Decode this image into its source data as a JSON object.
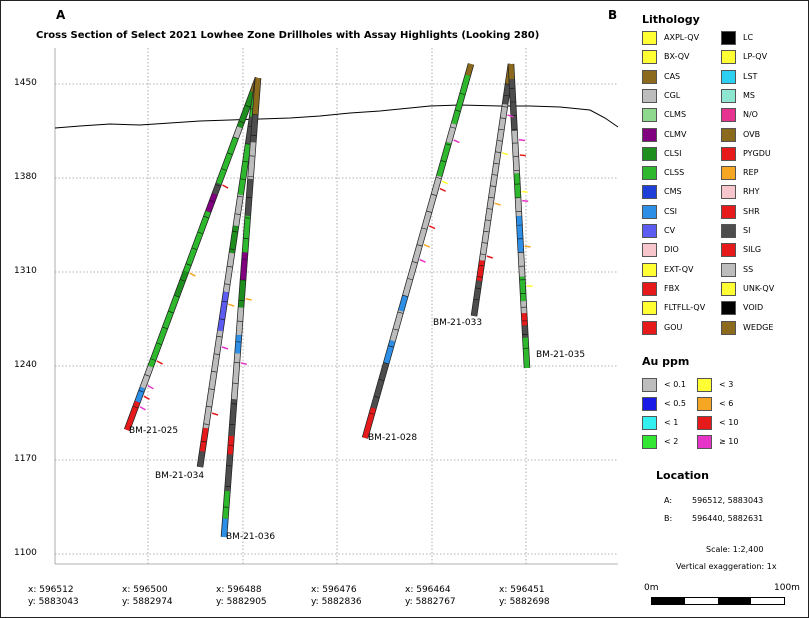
{
  "title": "Cross Section of Select 2021 Lowhee Zone Drillholes with Assay Highlights (Looking 280)",
  "section_ends": {
    "start": "A",
    "end": "B"
  },
  "elevation_labels": [
    "1450",
    "1380",
    "1310",
    "1240",
    "1170",
    "1100"
  ],
  "elevations": [
    1450,
    1380,
    1310,
    1240,
    1170,
    1100
  ],
  "x_ticks": [
    {
      "x": "x: 596512",
      "y": "y: 5883043"
    },
    {
      "x": "x: 596500",
      "y": "y: 5882974"
    },
    {
      "x": "x: 596488",
      "y": "y: 5882905"
    },
    {
      "x": "x: 596476",
      "y": "y: 5882836"
    },
    {
      "x": "x: 596464",
      "y": "y: 5882767"
    },
    {
      "x": "x: 596451",
      "y": "y: 5882698"
    }
  ],
  "drillholes": [
    {
      "id": "BM-21-025",
      "collar_elev": 1455,
      "end_elev": 1192
    },
    {
      "id": "BM-21-034",
      "collar_elev": 1455,
      "end_elev": 1167
    },
    {
      "id": "BM-21-036",
      "collar_elev": 1455,
      "end_elev": 1113
    },
    {
      "id": "BM-21-028",
      "collar_elev": 1460,
      "end_elev": 1187
    },
    {
      "id": "BM-21-033",
      "collar_elev": 1460,
      "end_elev": 1278
    },
    {
      "id": "BM-21-035",
      "collar_elev": 1460,
      "end_elev": 1240
    }
  ],
  "legend": {
    "lithology_title": "Lithology",
    "lithology": [
      {
        "code": "AXPL-QV",
        "color": "#ffff33"
      },
      {
        "code": "BX-QV",
        "color": "#ffff33"
      },
      {
        "code": "CAS",
        "color": "#8b6a1e"
      },
      {
        "code": "CGL",
        "color": "#bdbdbd"
      },
      {
        "code": "CLMS",
        "color": "#8fd98f"
      },
      {
        "code": "CLMV",
        "color": "#800080"
      },
      {
        "code": "CLSI",
        "color": "#1e8f1e"
      },
      {
        "code": "CLSS",
        "color": "#2db82d"
      },
      {
        "code": "CMS",
        "color": "#1f3fd9"
      },
      {
        "code": "CSI",
        "color": "#2d8fe6"
      },
      {
        "code": "CV",
        "color": "#5c5cf0"
      },
      {
        "code": "DIO",
        "color": "#f7c6cc"
      },
      {
        "code": "EXT-QV",
        "color": "#ffff33"
      },
      {
        "code": "FBX",
        "color": "#e61a1a"
      },
      {
        "code": "FLTFLL-QV",
        "color": "#ffff33"
      },
      {
        "code": "GOU",
        "color": "#e61a1a"
      },
      {
        "code": "LC",
        "color": "#000000"
      },
      {
        "code": "LP-QV",
        "color": "#ffff33"
      },
      {
        "code": "LST",
        "color": "#2dd0f0"
      },
      {
        "code": "MS",
        "color": "#8fe6d0"
      },
      {
        "code": "N/O",
        "color": "#e6338f"
      },
      {
        "code": "OVB",
        "color": "#8b6a1e"
      },
      {
        "code": "PYGDU",
        "color": "#e61a1a"
      },
      {
        "code": "REP",
        "color": "#f5a623"
      },
      {
        "code": "RHY",
        "color": "#f7c6cc"
      },
      {
        "code": "SHR",
        "color": "#e61a1a"
      },
      {
        "code": "SI",
        "color": "#4d4d4d"
      },
      {
        "code": "SILG",
        "color": "#e61a1a"
      },
      {
        "code": "SS",
        "color": "#bdbdbd"
      },
      {
        "code": "UNK-QV",
        "color": "#ffff33"
      },
      {
        "code": "VOID",
        "color": "#000000"
      },
      {
        "code": "WEDGE",
        "color": "#8b6a1e"
      }
    ],
    "au_title": "Au ppm",
    "au": [
      {
        "label": "< 0.1",
        "color": "#bdbdbd"
      },
      {
        "label": "< 0.5",
        "color": "#1a1ae6"
      },
      {
        "label": "< 1",
        "color": "#33f0f0"
      },
      {
        "label": "< 2",
        "color": "#33e633"
      },
      {
        "label": "< 3",
        "color": "#ffff33"
      },
      {
        "label": "< 6",
        "color": "#f5a623"
      },
      {
        "label": "< 10",
        "color": "#e61a1a"
      },
      {
        "label": "≥ 10",
        "color": "#e633c8"
      }
    ],
    "location_title": "Location",
    "location": [
      {
        "point": "A:",
        "coords": "596512, 5883043"
      },
      {
        "point": "B:",
        "coords": "596440, 5882631"
      }
    ],
    "scale": "Scale: 1:2,400",
    "exaggeration": "Vertical exaggeration: 1x",
    "scalebar_start": "0m",
    "scalebar_end": "100m"
  },
  "colors": {
    "topography": "#000000",
    "grid": "#9a9a9a"
  }
}
